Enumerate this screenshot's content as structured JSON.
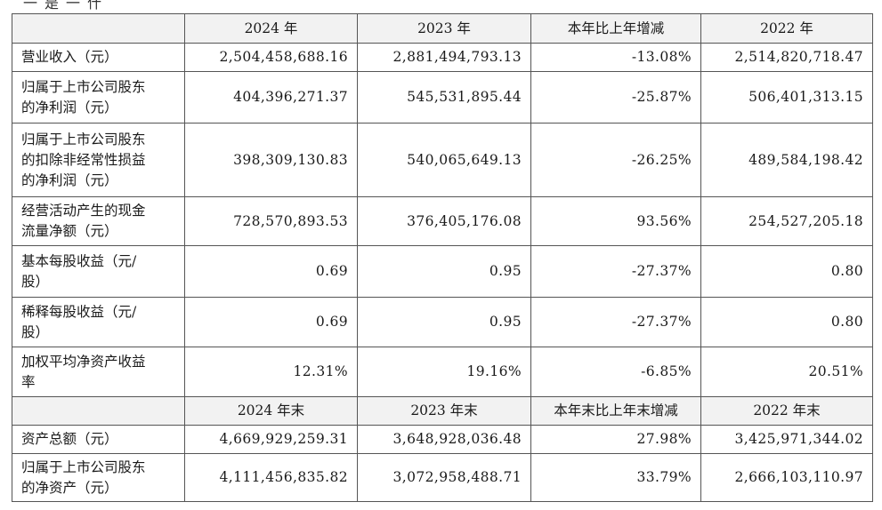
{
  "fragment_top": "一是一什",
  "header_1": [
    "",
    "2024 年",
    "2023 年",
    "本年比上年增减",
    "2022 年"
  ],
  "rows_1": [
    {
      "label": "营业收入（元）",
      "values": [
        "2,504,458,688.16",
        "2,881,494,793.13",
        "-13.08%",
        "2,514,820,718.47"
      ]
    },
    {
      "label": "归属于上市公司股东的净利润（元）",
      "values": [
        "404,396,271.37",
        "545,531,895.44",
        "-25.87%",
        "506,401,313.15"
      ]
    },
    {
      "label": "归属于上市公司股东的扣除非经常性损益的净利润（元）",
      "values": [
        "398,309,130.83",
        "540,065,649.13",
        "-26.25%",
        "489,584,198.42"
      ]
    },
    {
      "label": "经营活动产生的现金流量净额（元）",
      "values": [
        "728,570,893.53",
        "376,405,176.08",
        "93.56%",
        "254,527,205.18"
      ]
    },
    {
      "label": "基本每股收益（元/股）",
      "values": [
        "0.69",
        "0.95",
        "-27.37%",
        "0.80"
      ]
    },
    {
      "label": "稀释每股收益（元/股）",
      "values": [
        "0.69",
        "0.95",
        "-27.37%",
        "0.80"
      ]
    },
    {
      "label": "加权平均净资产收益率",
      "values": [
        "12.31%",
        "19.16%",
        "-6.85%",
        "20.51%"
      ]
    }
  ],
  "header_2": [
    "",
    "2024 年末",
    "2023 年末",
    "本年末比上年末增减",
    "2022 年末"
  ],
  "rows_2": [
    {
      "label": "资产总额（元）",
      "values": [
        "4,669,929,259.31",
        "3,648,928,036.48",
        "27.98%",
        "3,425,971,344.02"
      ]
    },
    {
      "label": "归属于上市公司股东的净资产（元）",
      "values": [
        "4,111,456,835.82",
        "3,072,958,488.71",
        "33.79%",
        "2,666,103,110.97"
      ]
    }
  ]
}
